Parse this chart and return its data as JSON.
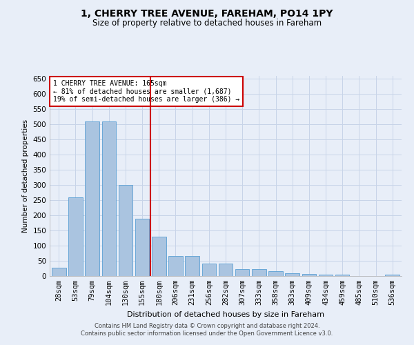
{
  "title": "1, CHERRY TREE AVENUE, FAREHAM, PO14 1PY",
  "subtitle": "Size of property relative to detached houses in Fareham",
  "xlabel": "Distribution of detached houses by size in Fareham",
  "ylabel": "Number of detached properties",
  "categories": [
    "28sqm",
    "53sqm",
    "79sqm",
    "104sqm",
    "130sqm",
    "155sqm",
    "180sqm",
    "206sqm",
    "231sqm",
    "256sqm",
    "282sqm",
    "307sqm",
    "333sqm",
    "358sqm",
    "383sqm",
    "409sqm",
    "434sqm",
    "459sqm",
    "485sqm",
    "510sqm",
    "536sqm"
  ],
  "values": [
    28,
    260,
    510,
    510,
    300,
    190,
    130,
    65,
    65,
    40,
    40,
    22,
    22,
    15,
    10,
    7,
    5,
    5,
    1,
    1,
    5
  ],
  "bar_color": "#aac4e0",
  "bar_edge_color": "#5a9fd4",
  "grid_color": "#c8d4e8",
  "background_color": "#e8eef8",
  "red_line_x": 5.5,
  "annotation_text": "1 CHERRY TREE AVENUE: 165sqm\n← 81% of detached houses are smaller (1,687)\n19% of semi-detached houses are larger (386) →",
  "annotation_box_color": "#ffffff",
  "annotation_box_edge": "#cc0000",
  "footer_line1": "Contains HM Land Registry data © Crown copyright and database right 2024.",
  "footer_line2": "Contains public sector information licensed under the Open Government Licence v3.0.",
  "ylim": [
    0,
    660
  ],
  "yticks": [
    0,
    50,
    100,
    150,
    200,
    250,
    300,
    350,
    400,
    450,
    500,
    550,
    600,
    650
  ]
}
